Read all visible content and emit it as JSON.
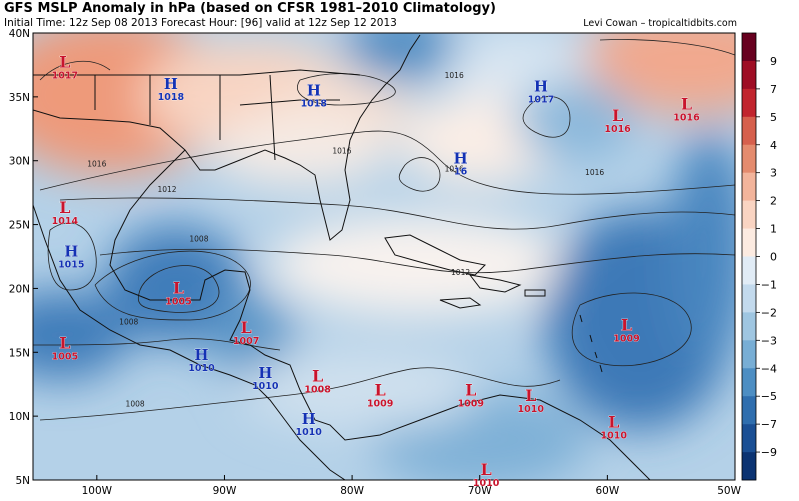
{
  "header": {
    "title": "GFS MSLP Anomaly in hPa (based on CFSR 1981–2010 Climatology)",
    "subtitle": "Initial Time: 12z Sep 08 2013 Forecast Hour: [96] valid at 12z Sep 12 2013",
    "credit": "Levi Cowan – tropicaltidbits.com"
  },
  "map": {
    "lon_range": [
      -105,
      -50
    ],
    "lat_range": [
      5,
      40
    ],
    "lon_ticks": [
      {
        "v": -100,
        "label": "100W"
      },
      {
        "v": -90,
        "label": "90W"
      },
      {
        "v": -80,
        "label": "80W"
      },
      {
        "v": -70,
        "label": "70W"
      },
      {
        "v": -60,
        "label": "60W"
      },
      {
        "v": -50,
        "label": "50W"
      }
    ],
    "lat_ticks": [
      {
        "v": 5,
        "label": "5N"
      },
      {
        "v": 10,
        "label": "10N"
      },
      {
        "v": 15,
        "label": "15N"
      },
      {
        "v": 20,
        "label": "20N"
      },
      {
        "v": 25,
        "label": "25N"
      },
      {
        "v": 30,
        "label": "30N"
      },
      {
        "v": 35,
        "label": "35N"
      },
      {
        "v": 40,
        "label": "40N"
      }
    ],
    "pressure_centers": [
      {
        "type": "L",
        "value": "1017",
        "lon": -102.5,
        "lat": 37.3
      },
      {
        "type": "H",
        "value": "1018",
        "lon": -94.2,
        "lat": 35.6
      },
      {
        "type": "H",
        "value": "1018",
        "lon": -83.0,
        "lat": 35.1
      },
      {
        "type": "H",
        "value": "1017",
        "lon": -65.2,
        "lat": 35.4
      },
      {
        "type": "L",
        "value": "1016",
        "lon": -59.2,
        "lat": 33.1
      },
      {
        "type": "L",
        "value": "1016",
        "lon": -53.8,
        "lat": 34.0
      },
      {
        "type": "H",
        "value": "16",
        "lon": -71.5,
        "lat": 29.8
      },
      {
        "type": "L",
        "value": "1014",
        "lon": -102.5,
        "lat": 25.9
      },
      {
        "type": "H",
        "value": "1015",
        "lon": -102.0,
        "lat": 22.5
      },
      {
        "type": "L",
        "value": "1005",
        "lon": -93.6,
        "lat": 19.6
      },
      {
        "type": "L",
        "value": "1007",
        "lon": -88.3,
        "lat": 16.5
      },
      {
        "type": "L",
        "value": "1005",
        "lon": -102.5,
        "lat": 15.3
      },
      {
        "type": "H",
        "value": "1010",
        "lon": -91.8,
        "lat": 14.4
      },
      {
        "type": "H",
        "value": "1010",
        "lon": -86.8,
        "lat": 13.0
      },
      {
        "type": "L",
        "value": "1008",
        "lon": -82.7,
        "lat": 12.7
      },
      {
        "type": "L",
        "value": "1009",
        "lon": -77.8,
        "lat": 11.6
      },
      {
        "type": "L",
        "value": "1009",
        "lon": -70.7,
        "lat": 11.6
      },
      {
        "type": "L",
        "value": "1010",
        "lon": -66.0,
        "lat": 11.2
      },
      {
        "type": "L",
        "value": "1009",
        "lon": -58.5,
        "lat": 16.7
      },
      {
        "type": "H",
        "value": "1010",
        "lon": -83.4,
        "lat": 9.4
      },
      {
        "type": "L",
        "value": "1010",
        "lon": -59.5,
        "lat": 9.1
      },
      {
        "type": "L",
        "value": "1010",
        "lon": -69.5,
        "lat": 5.4
      }
    ],
    "isobar_labels": [
      {
        "text": "1016",
        "lon": -72.0,
        "lat": 36.7
      },
      {
        "text": "1016",
        "lon": -80.8,
        "lat": 30.8
      },
      {
        "text": "1016",
        "lon": -100.0,
        "lat": 29.8
      },
      {
        "text": "1016",
        "lon": -72.0,
        "lat": 29.4
      },
      {
        "text": "1016",
        "lon": -61.0,
        "lat": 29.1
      },
      {
        "text": "1012",
        "lon": -94.5,
        "lat": 27.8
      },
      {
        "text": "1012",
        "lon": -71.5,
        "lat": 21.3
      },
      {
        "text": "1008",
        "lon": -92.0,
        "lat": 23.9
      },
      {
        "text": "1008",
        "lon": -97.5,
        "lat": 17.4
      },
      {
        "text": "1008",
        "lon": -97.0,
        "lat": 11.0
      }
    ]
  },
  "colorbar": {
    "ticks": [
      "9",
      "7",
      "5",
      "4",
      "3",
      "2",
      "1",
      "0",
      "−1",
      "−2",
      "−3",
      "−4",
      "−5",
      "−7",
      "−9"
    ],
    "colors": [
      "#67001f",
      "#9e0d24",
      "#c1252e",
      "#d6604d",
      "#e48b6e",
      "#f2b49b",
      "#f9d4c2",
      "#fcebe1",
      "#e1ecf6",
      "#c3daed",
      "#9fc6e1",
      "#78aed5",
      "#4d8ec3",
      "#2f6eae",
      "#1a4f94",
      "#0b3372"
    ]
  }
}
